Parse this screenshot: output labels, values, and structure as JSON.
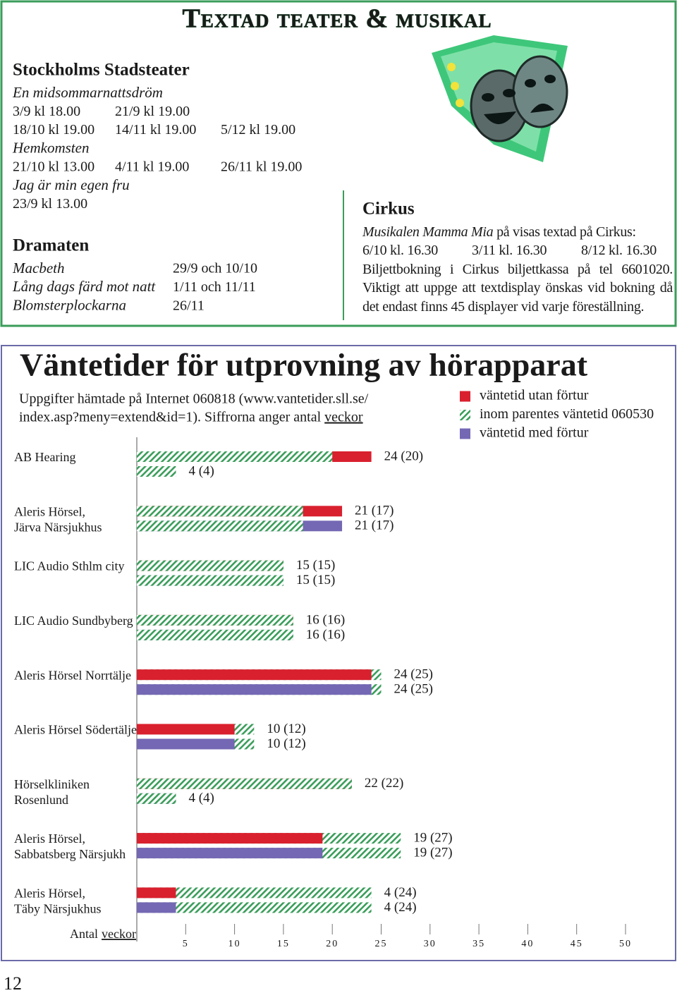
{
  "header": {
    "title": "Textad teater & musikal"
  },
  "venues": [
    {
      "name": "Stockholms Stadsteater",
      "shows": [
        {
          "title": "En midsommarnattsdröm",
          "dates": [
            [
              "3/9 kl 18.00",
              "21/9 kl 19.00"
            ],
            [
              "18/10 kl 19.00",
              "14/11 kl 19.00",
              "5/12 kl 19.00"
            ]
          ]
        },
        {
          "title": "Hemkomsten",
          "dates": [
            [
              "21/10 kl 13.00",
              "4/11 kl 19.00",
              "26/11 kl 19.00"
            ]
          ]
        },
        {
          "title": "Jag är min egen fru",
          "dates": [
            [
              "23/9 kl 13.00"
            ]
          ]
        }
      ]
    },
    {
      "name": "Dramaten",
      "shows": [
        {
          "title": "Macbeth",
          "dates": "29/9 och 10/10"
        },
        {
          "title": "Lång dags färd mot natt",
          "dates": "1/11 och 11/11"
        },
        {
          "title": "Blomsterplockarna",
          "dates": "26/11"
        }
      ]
    }
  ],
  "cirkus": {
    "name": "Cirkus",
    "intro_title": "Musikalen Mamma Mia",
    "intro": "på visas textad på Cirkus:",
    "dates": [
      "6/10 kl. 16.30",
      "3/11 kl. 16.30",
      "8/12 kl. 16.30"
    ],
    "text": "Biljettbokning i Cirkus biljettkassa på tel 6601020. Viktigt att uppge att textdisplay önskas vid bokning då det endast finns 45 displayer vid varje föreställning."
  },
  "chart_data": {
    "type": "bar",
    "orientation": "horizontal",
    "title": "Väntetider för utprovning av hörapparat",
    "subtitle": [
      "Uppgifter hämtade på Internet 060818 (www.vantetider.sll.se/",
      "index.asp?meny=extend&id=1). Siffrorna anger antal"
    ],
    "subtitle_link": "veckor",
    "x_label": "Antal",
    "x_label_link": "veckor",
    "categories": [
      [
        "AB Hearing"
      ],
      [
        "Aleris Hörsel,",
        "Järva Närsjukhus"
      ],
      [
        "LIC Audio Sthlm city"
      ],
      [
        "LIC Audio Sundbyberg"
      ],
      [
        "Aleris Hörsel Norrtälje"
      ],
      [
        "Aleris Hörsel Södertälje"
      ],
      [
        "Hörselkliniken",
        "Rosenlund"
      ],
      [
        "Aleris Hörsel,",
        "Sabbatsberg Närsjukh"
      ],
      [
        "Aleris Hörsel,",
        "Täby Närsjukhus"
      ]
    ],
    "series": [
      {
        "name": "väntetid utan förtur",
        "color": "#d9202e",
        "values": [
          24,
          21,
          15,
          16,
          24,
          10,
          22,
          19,
          4
        ],
        "previous_values": [
          20,
          17,
          15,
          16,
          25,
          12,
          22,
          27,
          24
        ],
        "value_labels": [
          "24 (20)",
          "21 (17)",
          "15 (15)",
          "16 (16)",
          "24 (25)",
          "10 (12)",
          "22 (22)",
          "19 (27)",
          "4 (24)"
        ]
      },
      {
        "name": "väntetid med förtur",
        "color": "#7468b4",
        "values": [
          4,
          21,
          15,
          16,
          24,
          10,
          4,
          19,
          4
        ],
        "previous_values": [
          4,
          17,
          15,
          16,
          25,
          12,
          4,
          27,
          24
        ],
        "value_labels": [
          "4 (4)",
          "21 (17)",
          "15 (15)",
          "16 (16)",
          "24 (25)",
          "10 (12)",
          "4 (4)",
          "19 (27)",
          "4 (24)"
        ]
      }
    ],
    "previous_name": "inom parentes väntetid 060530",
    "previous_color": "#3a9d5a",
    "xlim": [
      0,
      50
    ],
    "xticks": [
      5,
      10,
      15,
      20,
      25,
      30,
      35,
      40,
      45,
      50
    ]
  },
  "page_number": "12"
}
